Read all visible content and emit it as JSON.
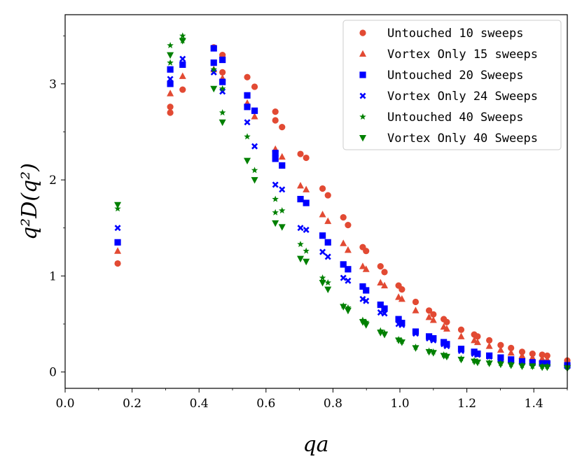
{
  "chart_data": {
    "type": "scatter",
    "title": "",
    "xlabel": "qa",
    "ylabel": "q²D(q²)",
    "xlim": [
      0.0,
      1.5
    ],
    "ylim": [
      -0.17,
      3.72
    ],
    "xticks": [
      0.0,
      0.2,
      0.4,
      0.6,
      0.8,
      1.0,
      1.2,
      1.4
    ],
    "xtick_labels": [
      "0.0",
      "0.2",
      "0.4",
      "0.6",
      "0.8",
      "1.0",
      "1.2",
      "1.4"
    ],
    "yticks": [
      0,
      1,
      2,
      3
    ],
    "ytick_labels": [
      "0",
      "1",
      "2",
      "3"
    ],
    "grid": false,
    "legend_position": "top-right",
    "series": [
      {
        "name": "Untouched 10 sweeps",
        "marker": "circle",
        "color": "#e24a33",
        "x": [
          0.157,
          0.314,
          0.314,
          0.351,
          0.444,
          0.47,
          0.47,
          0.544,
          0.566,
          0.628,
          0.628,
          0.648,
          0.703,
          0.72,
          0.769,
          0.785,
          0.831,
          0.845,
          0.889,
          0.899,
          0.942,
          0.954,
          0.996,
          1.006,
          1.047,
          1.087,
          1.1,
          1.131,
          1.14,
          1.183,
          1.222,
          1.232,
          1.267,
          1.301,
          1.332,
          1.365,
          1.396,
          1.425,
          1.44,
          1.5
        ],
        "y": [
          1.13,
          2.7,
          2.76,
          2.94,
          3.38,
          3.3,
          3.12,
          3.07,
          2.97,
          2.71,
          2.62,
          2.55,
          2.27,
          2.23,
          1.91,
          1.84,
          1.61,
          1.53,
          1.3,
          1.26,
          1.1,
          1.04,
          0.9,
          0.86,
          0.73,
          0.64,
          0.6,
          0.55,
          0.52,
          0.44,
          0.39,
          0.37,
          0.33,
          0.28,
          0.25,
          0.21,
          0.19,
          0.18,
          0.17,
          0.12
        ]
      },
      {
        "name": "Vortex Only 15 sweeps",
        "marker": "triangle-up",
        "color": "#e24a33",
        "x": [
          0.157,
          0.314,
          0.351,
          0.444,
          0.47,
          0.544,
          0.566,
          0.628,
          0.648,
          0.703,
          0.72,
          0.769,
          0.785,
          0.831,
          0.845,
          0.889,
          0.899,
          0.942,
          0.954,
          0.996,
          1.006,
          1.047,
          1.087,
          1.1,
          1.131,
          1.14,
          1.183,
          1.222,
          1.232,
          1.267,
          1.301,
          1.332,
          1.365,
          1.396,
          1.425,
          1.44,
          1.5
        ],
        "y": [
          1.26,
          2.9,
          3.08,
          3.15,
          3.06,
          2.8,
          2.66,
          2.32,
          2.24,
          1.94,
          1.9,
          1.64,
          1.57,
          1.34,
          1.27,
          1.1,
          1.07,
          0.93,
          0.9,
          0.78,
          0.76,
          0.64,
          0.57,
          0.54,
          0.47,
          0.45,
          0.37,
          0.33,
          0.31,
          0.27,
          0.23,
          0.2,
          0.17,
          0.15,
          0.14,
          0.13,
          0.1
        ]
      },
      {
        "name": "Untouched 20 Sweeps",
        "marker": "square",
        "color": "#0000ff",
        "x": [
          0.157,
          0.314,
          0.314,
          0.351,
          0.444,
          0.444,
          0.47,
          0.47,
          0.544,
          0.544,
          0.566,
          0.628,
          0.628,
          0.648,
          0.703,
          0.72,
          0.769,
          0.785,
          0.831,
          0.845,
          0.889,
          0.899,
          0.942,
          0.954,
          0.996,
          1.006,
          1.047,
          1.087,
          1.1,
          1.131,
          1.14,
          1.183,
          1.222,
          1.232,
          1.267,
          1.301,
          1.332,
          1.365,
          1.396,
          1.425,
          1.44,
          1.5
        ],
        "y": [
          1.35,
          3.15,
          3.0,
          3.2,
          3.37,
          3.22,
          3.25,
          3.02,
          2.88,
          2.76,
          2.72,
          2.28,
          2.22,
          2.15,
          1.8,
          1.76,
          1.42,
          1.35,
          1.12,
          1.07,
          0.89,
          0.85,
          0.7,
          0.66,
          0.55,
          0.51,
          0.42,
          0.37,
          0.35,
          0.31,
          0.29,
          0.24,
          0.21,
          0.19,
          0.17,
          0.15,
          0.13,
          0.11,
          0.1,
          0.09,
          0.09,
          0.07
        ]
      },
      {
        "name": "Vortex Only 24 Sweeps",
        "marker": "x",
        "color": "#0000ff",
        "x": [
          0.157,
          0.314,
          0.351,
          0.444,
          0.47,
          0.544,
          0.566,
          0.628,
          0.648,
          0.703,
          0.72,
          0.769,
          0.785,
          0.831,
          0.845,
          0.889,
          0.899,
          0.942,
          0.954,
          0.996,
          1.006,
          1.047,
          1.087,
          1.1,
          1.131,
          1.14,
          1.183,
          1.222,
          1.232,
          1.267,
          1.301,
          1.332,
          1.365,
          1.396,
          1.425,
          1.44,
          1.5
        ],
        "y": [
          1.5,
          3.05,
          3.26,
          3.12,
          2.92,
          2.6,
          2.35,
          1.95,
          1.9,
          1.5,
          1.48,
          1.25,
          1.2,
          0.98,
          0.95,
          0.76,
          0.74,
          0.62,
          0.61,
          0.5,
          0.49,
          0.4,
          0.35,
          0.33,
          0.29,
          0.27,
          0.22,
          0.19,
          0.18,
          0.16,
          0.13,
          0.12,
          0.1,
          0.09,
          0.09,
          0.08,
          0.06
        ]
      },
      {
        "name": "Untouched 40 Sweeps",
        "marker": "star",
        "color": "#008000",
        "x": [
          0.157,
          0.314,
          0.314,
          0.351,
          0.351,
          0.444,
          0.47,
          0.47,
          0.544,
          0.566,
          0.628,
          0.628,
          0.648,
          0.703,
          0.72,
          0.769,
          0.785,
          0.831,
          0.845,
          0.889,
          0.899,
          0.942,
          0.954,
          0.996,
          1.006,
          1.047,
          1.087,
          1.1,
          1.131,
          1.14,
          1.183,
          1.222,
          1.232,
          1.267,
          1.301,
          1.332,
          1.365,
          1.396,
          1.425,
          1.44,
          1.5
        ],
        "y": [
          1.7,
          3.4,
          3.22,
          3.5,
          3.45,
          3.15,
          2.95,
          2.7,
          2.45,
          2.1,
          1.8,
          1.66,
          1.68,
          1.33,
          1.26,
          0.98,
          0.93,
          0.69,
          0.67,
          0.54,
          0.52,
          0.43,
          0.41,
          0.34,
          0.32,
          0.26,
          0.22,
          0.21,
          0.18,
          0.17,
          0.14,
          0.12,
          0.11,
          0.1,
          0.09,
          0.08,
          0.07,
          0.06,
          0.06,
          0.06,
          0.05
        ]
      },
      {
        "name": "Vortex Only 40 Sweeps",
        "marker": "triangle-down",
        "color": "#008000",
        "x": [
          0.157,
          0.314,
          0.351,
          0.444,
          0.47,
          0.544,
          0.566,
          0.628,
          0.648,
          0.703,
          0.72,
          0.769,
          0.785,
          0.831,
          0.845,
          0.889,
          0.899,
          0.942,
          0.954,
          0.996,
          1.006,
          1.047,
          1.087,
          1.1,
          1.131,
          1.14,
          1.183,
          1.222,
          1.232,
          1.267,
          1.301,
          1.332,
          1.365,
          1.396,
          1.425,
          1.44,
          1.5
        ],
        "y": [
          1.74,
          3.3,
          3.45,
          2.95,
          2.6,
          2.2,
          2.0,
          1.55,
          1.51,
          1.18,
          1.15,
          0.93,
          0.86,
          0.68,
          0.64,
          0.52,
          0.49,
          0.41,
          0.39,
          0.33,
          0.31,
          0.25,
          0.21,
          0.2,
          0.17,
          0.16,
          0.13,
          0.11,
          0.1,
          0.09,
          0.08,
          0.07,
          0.06,
          0.06,
          0.05,
          0.05,
          0.04
        ]
      }
    ]
  }
}
